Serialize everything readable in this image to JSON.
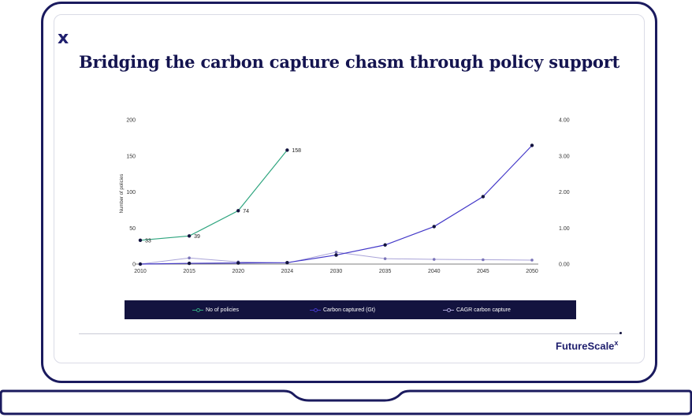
{
  "slide": {
    "logo_mark": "x",
    "title": "Bridging the carbon capture chasm through policy support",
    "brand": "FutureScale",
    "brand_mark": "x"
  },
  "colors": {
    "frame": "#1a1a5e",
    "title": "#141450",
    "policies": "#2fa57f",
    "carbon": "#4338c8",
    "cagr": "#aaa4d8",
    "legend_bg": "#13133f"
  },
  "chart_data": {
    "type": "line",
    "x": [
      2010,
      2015,
      2020,
      2024,
      2030,
      2035,
      2040,
      2045,
      2050
    ],
    "xlabel": "",
    "ylabel_left": "Number of policies",
    "ylim_left": [
      0,
      200
    ],
    "yticks_left": [
      "0",
      "50",
      "100",
      "150",
      "200"
    ],
    "ylim_right": [
      0,
      4
    ],
    "yticks_right": [
      "0.00",
      "1.00",
      "2.00",
      "3.00",
      "4.00"
    ],
    "grid": false,
    "legend_position": "bottom",
    "series": [
      {
        "name": "No of policies",
        "axis": "left",
        "color": "#2fa57f",
        "values": [
          33,
          39,
          74,
          158,
          null,
          null,
          null,
          null,
          null
        ],
        "labels": [
          "33",
          "39",
          "74",
          "158"
        ]
      },
      {
        "name": "Carbon captured (Gt)",
        "axis": "right",
        "color": "#4338c8",
        "values": [
          0.0,
          0.02,
          0.03,
          0.04,
          0.25,
          0.53,
          1.04,
          1.87,
          3.29
        ]
      },
      {
        "name": "CAGR carbon capture",
        "axis": "right",
        "color": "#aaa4d8",
        "values": [
          0.0,
          0.17,
          0.06,
          0.03,
          0.33,
          0.15,
          0.13,
          0.12,
          0.11
        ]
      }
    ]
  }
}
